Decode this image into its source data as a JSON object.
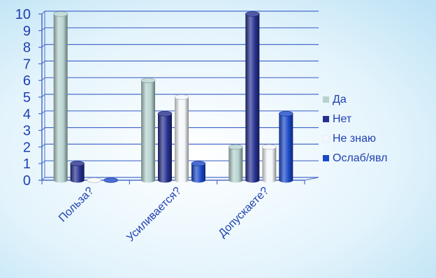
{
  "chart_data": {
    "type": "bar",
    "categories": [
      "Польза?",
      "Усиливается?",
      "Допускаете?"
    ],
    "series": [
      {
        "name": "Да",
        "values": [
          10,
          6,
          2
        ]
      },
      {
        "name": "Нет",
        "values": [
          1,
          4,
          10
        ]
      },
      {
        "name": "Не знаю",
        "values": [
          0,
          5,
          2
        ]
      },
      {
        "name": "Ослаб/явл",
        "values": [
          0,
          1,
          4
        ]
      }
    ],
    "yticks": [
      "0",
      "1",
      "2",
      "3",
      "4",
      "5",
      "6",
      "7",
      "8",
      "9",
      "10"
    ],
    "ylim": [
      0,
      10
    ],
    "grid": true,
    "legend_position": "right",
    "series_colors": [
      "#b6d3d0",
      "#252f8f",
      "#f4f8fb",
      "#1a48c8"
    ],
    "title": "",
    "xlabel": "",
    "ylabel": ""
  }
}
